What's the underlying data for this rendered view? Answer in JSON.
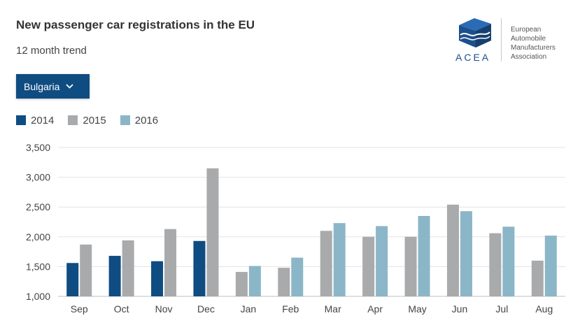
{
  "header": {
    "title": "New passenger car registrations in the EU",
    "subtitle": "12 month trend"
  },
  "logo": {
    "wordmark": "ACEA",
    "lines": [
      "European",
      "Automobile",
      "Manufacturers",
      "Association"
    ],
    "icon": "acea-cube-icon",
    "color": "#1c4f8c"
  },
  "filter": {
    "selected": "Bulgaria",
    "icon": "chevron-down-icon"
  },
  "chart_data": {
    "type": "bar",
    "title": "",
    "xlabel": "",
    "ylabel": "",
    "categories": [
      "Sep",
      "Oct",
      "Nov",
      "Dec",
      "Jan",
      "Feb",
      "Mar",
      "Apr",
      "May",
      "Jun",
      "Jul",
      "Aug"
    ],
    "series": [
      {
        "name": "2014",
        "color": "#0f4c81",
        "values": [
          1560,
          1680,
          1590,
          1930,
          null,
          null,
          null,
          null,
          null,
          null,
          null,
          null
        ]
      },
      {
        "name": "2015",
        "color": "#a9aaac",
        "values": [
          1870,
          1940,
          2130,
          3150,
          1410,
          1480,
          2100,
          2000,
          2000,
          2540,
          2060,
          1600
        ]
      },
      {
        "name": "2016",
        "color": "#8bb6c8",
        "values": [
          null,
          null,
          null,
          null,
          1510,
          1650,
          2230,
          2180,
          2350,
          2430,
          2170,
          2020
        ]
      }
    ],
    "ylim": [
      1000,
      3500
    ],
    "yticks": [
      1000,
      1500,
      2000,
      2500,
      3000,
      3500
    ],
    "ytick_labels": [
      "1,000",
      "1,500",
      "2,000",
      "2,500",
      "3,000",
      "3,500"
    ],
    "grid": true,
    "legend": "top-left"
  }
}
